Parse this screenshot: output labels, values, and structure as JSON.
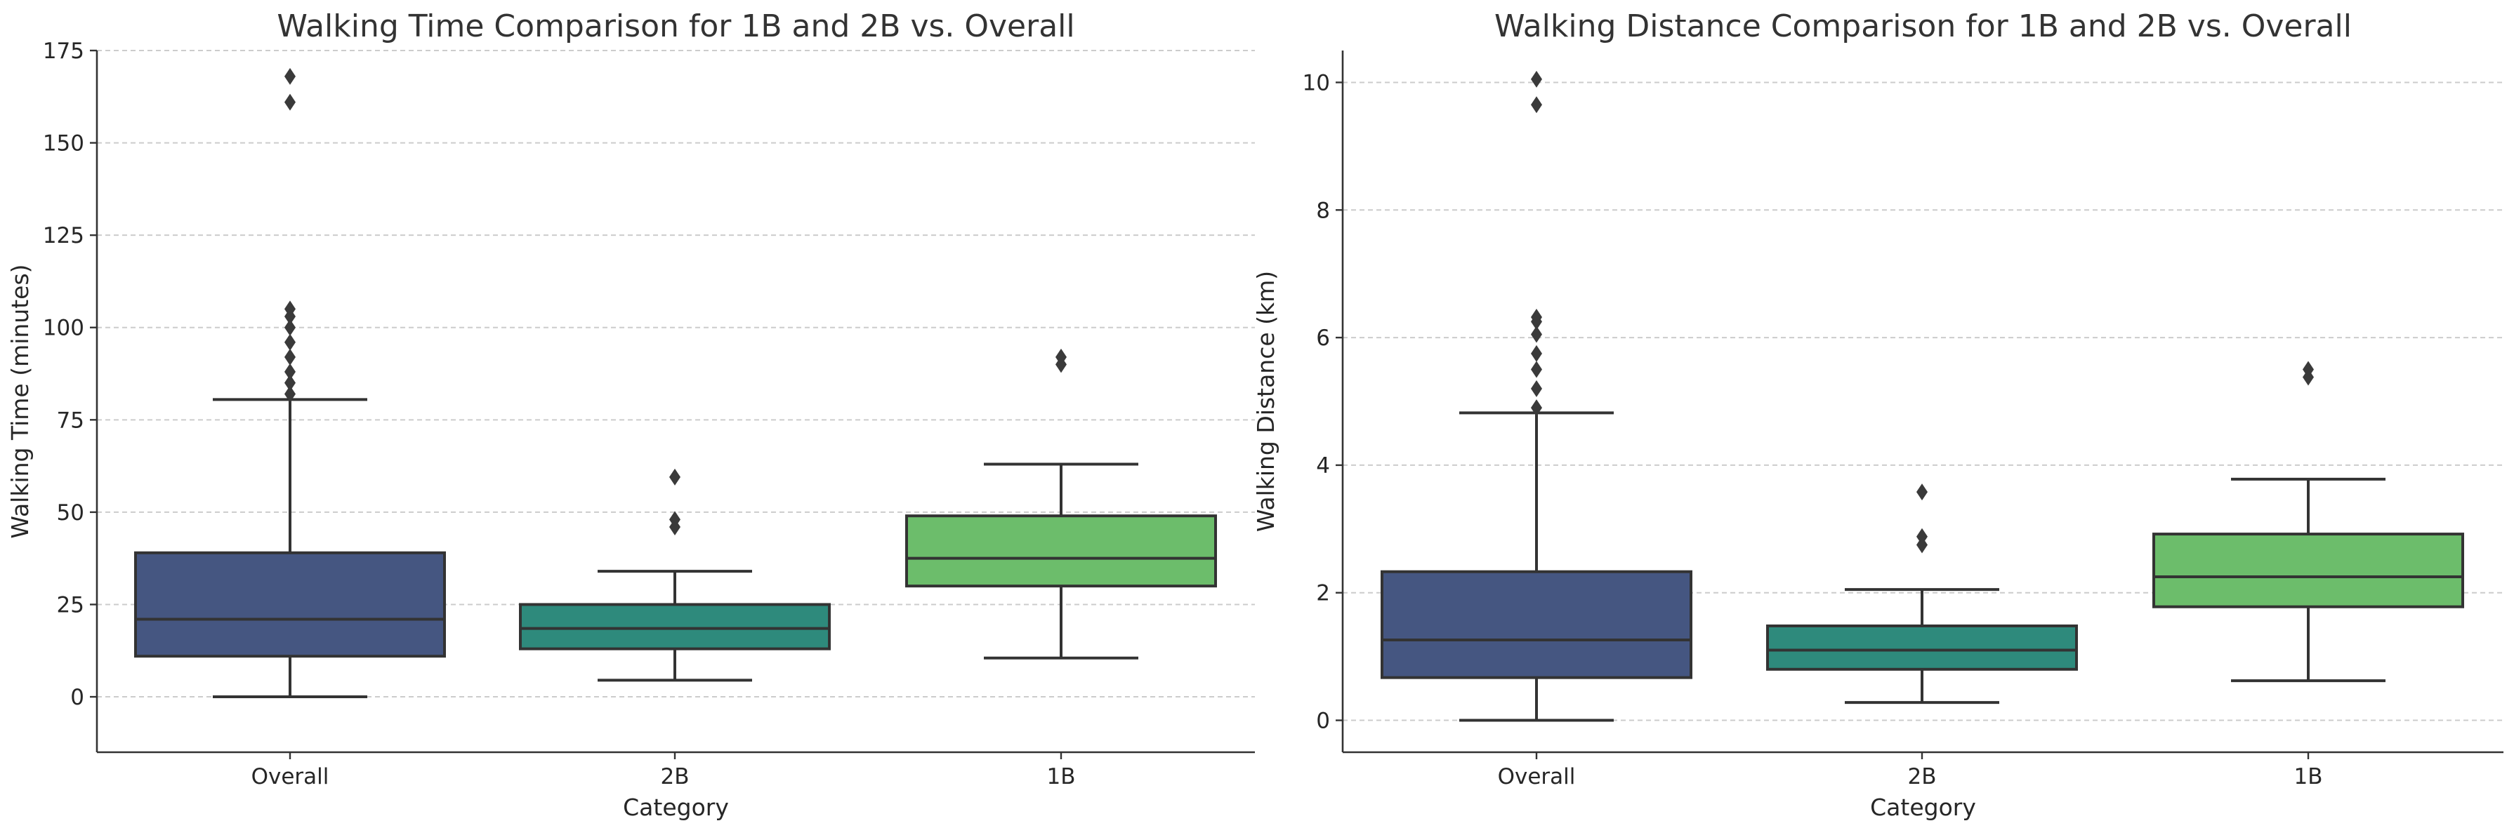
{
  "chart_data": [
    {
      "type": "box",
      "title": "Walking Time Comparison for 1B and 2B vs. Overall",
      "xlabel": "Category",
      "ylabel": "Walking Time (minutes)",
      "categories": [
        "Overall",
        "2B",
        "1B"
      ],
      "ylim": [
        -15,
        175
      ],
      "yticks": [
        0,
        25,
        50,
        75,
        100,
        125,
        150,
        175
      ],
      "grid": "y-dashed",
      "colors": [
        "#455681",
        "#2e8a7c",
        "#6cbd6b"
      ],
      "boxes": [
        {
          "category": "Overall",
          "whisker_low": 0,
          "q1": 11,
          "median": 21,
          "q3": 39,
          "whisker_high": 80.5,
          "outliers": [
            82,
            85,
            88,
            92,
            96,
            100,
            103,
            105,
            161,
            168
          ]
        },
        {
          "category": "2B",
          "whisker_low": 4.5,
          "q1": 13,
          "median": 18.5,
          "q3": 25,
          "whisker_high": 34,
          "outliers": [
            46,
            48,
            59.5
          ]
        },
        {
          "category": "1B",
          "whisker_low": 10.5,
          "q1": 30,
          "median": 37.5,
          "q3": 49,
          "whisker_high": 63,
          "outliers": [
            90,
            92
          ]
        }
      ]
    },
    {
      "type": "box",
      "title": "Walking Distance Comparison for 1B and 2B vs. Overall",
      "xlabel": "Category",
      "ylabel": "Walking Distance (km)",
      "categories": [
        "Overall",
        "2B",
        "1B"
      ],
      "ylim": [
        -0.5,
        10.5
      ],
      "yticks": [
        0,
        2,
        4,
        6,
        8,
        10
      ],
      "grid": "y-dashed",
      "colors": [
        "#455681",
        "#2e8a7c",
        "#6cbd6b"
      ],
      "boxes": [
        {
          "category": "Overall",
          "whisker_low": 0,
          "q1": 0.67,
          "median": 1.26,
          "q3": 2.33,
          "whisker_high": 4.82,
          "outliers": [
            4.9,
            5.2,
            5.5,
            5.75,
            6.05,
            6.25,
            6.32,
            9.65,
            10.05
          ]
        },
        {
          "category": "2B",
          "whisker_low": 0.28,
          "q1": 0.8,
          "median": 1.1,
          "q3": 1.48,
          "whisker_high": 2.05,
          "outliers": [
            2.75,
            2.88,
            3.58
          ]
        },
        {
          "category": "1B",
          "whisker_low": 0.62,
          "q1": 1.78,
          "median": 2.25,
          "q3": 2.92,
          "whisker_high": 3.78,
          "outliers": [
            5.38,
            5.5
          ]
        }
      ]
    }
  ]
}
